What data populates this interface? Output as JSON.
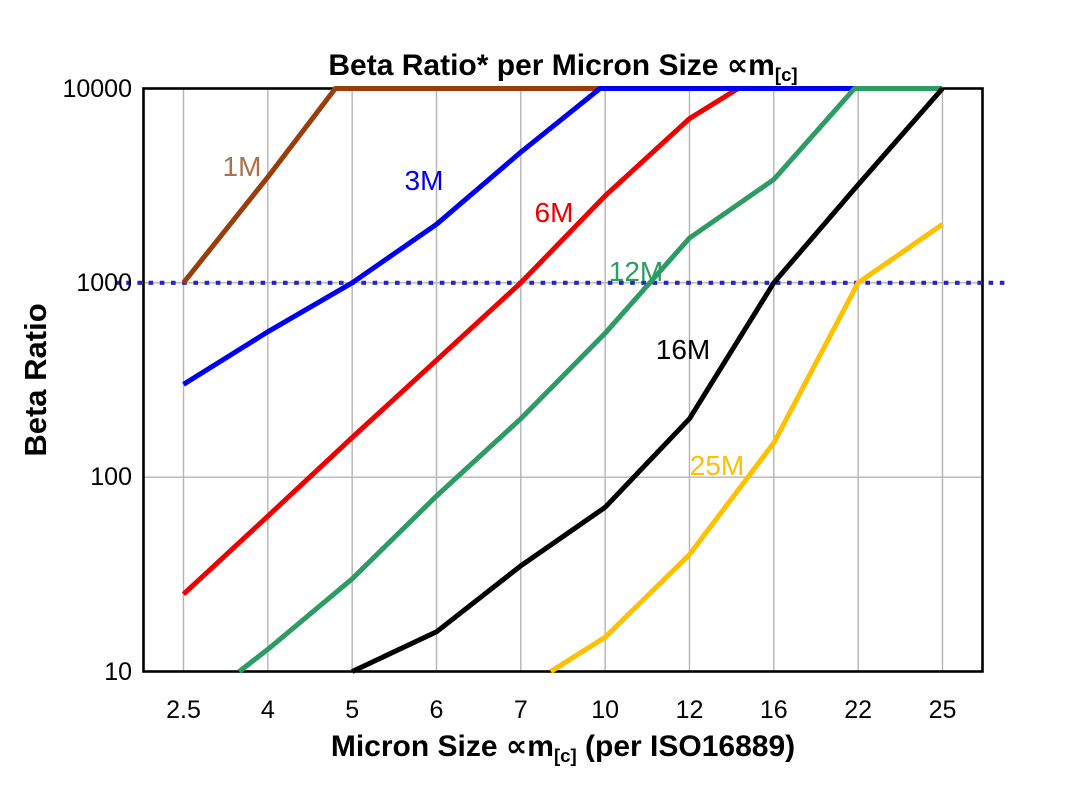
{
  "page": {
    "background": "#FFFFFF"
  },
  "title": {
    "text": "Beta Ratio* per Micron Size ∝m[c]",
    "prefix": "Beta Ratio* per Micron Size ",
    "symbol": "∝m",
    "subscript": "[c]"
  },
  "y_axis": {
    "label": "Beta Ratio",
    "scale": "log",
    "min": 10,
    "max": 10000,
    "tick_labels": [
      "10000",
      "1000",
      "100",
      "10"
    ],
    "tick_values": [
      10000,
      1000,
      100,
      10
    ]
  },
  "x_axis": {
    "label_text": "Micron Size ∝m[c] (per ISO16889)",
    "label_prefix": "Micron Size ",
    "label_symbol": "∝m",
    "label_subscript": "[c]",
    "label_suffix": " (per ISO16889)",
    "tick_labels": [
      "2.5",
      "4",
      "5",
      "6",
      "7",
      "10",
      "12",
      "16",
      "22",
      "25"
    ]
  },
  "chart_data": {
    "type": "line",
    "title": "Beta Ratio* per Micron Size ∝m[c]",
    "xlabel": "Micron Size ∝m[c] (per ISO16889)",
    "ylabel": "Beta Ratio",
    "x_scale": "categorical",
    "y_scale": "log",
    "ylim": [
      10,
      10000
    ],
    "grid": true,
    "legend_position": "inline-labels",
    "categories": [
      2.5,
      4,
      5,
      6,
      7,
      10,
      12,
      16,
      22,
      25
    ],
    "reference_line": {
      "value": 1000,
      "orientation": "horizontal",
      "style": "dotted",
      "color": "#2525CC"
    },
    "colors": {
      "gridline": "#B4B4B4",
      "frame": "#000000",
      "background": "#FFFFFF"
    },
    "series": [
      {
        "name": "1M",
        "color": "#9A3D0B",
        "label_color": "#AC7246",
        "values": [
          1000,
          3500,
          13000,
          13000,
          13000,
          13000,
          13000,
          13000,
          13000,
          13000
        ]
      },
      {
        "name": "6M",
        "color": "#EE0000",
        "values": [
          25,
          63,
          160,
          400,
          1000,
          2800,
          7000,
          13000,
          13000,
          13000
        ]
      },
      {
        "name": "3M",
        "color": "#0000EE",
        "values": [
          300,
          560,
          1000,
          2000,
          4700,
          10500,
          10500,
          10500,
          10500,
          10500
        ]
      },
      {
        "name": "12M",
        "color": "#2D9B64",
        "values": [
          6,
          13,
          30,
          80,
          200,
          550,
          1700,
          3400,
          10500,
          10500
        ]
      },
      {
        "name": "16M",
        "color": "#000000",
        "values": [
          null,
          null,
          10,
          16,
          35,
          70,
          200,
          1000,
          3200,
          10000
        ]
      },
      {
        "name": "25M",
        "color": "#FFC000",
        "values": [
          null,
          null,
          null,
          null,
          8,
          15,
          40,
          150,
          1000,
          2000
        ]
      }
    ],
    "note": "Series values above 10000 are clipped flat at the 10000 axis maximum; values below 10 are clipped at the bottom axis."
  }
}
